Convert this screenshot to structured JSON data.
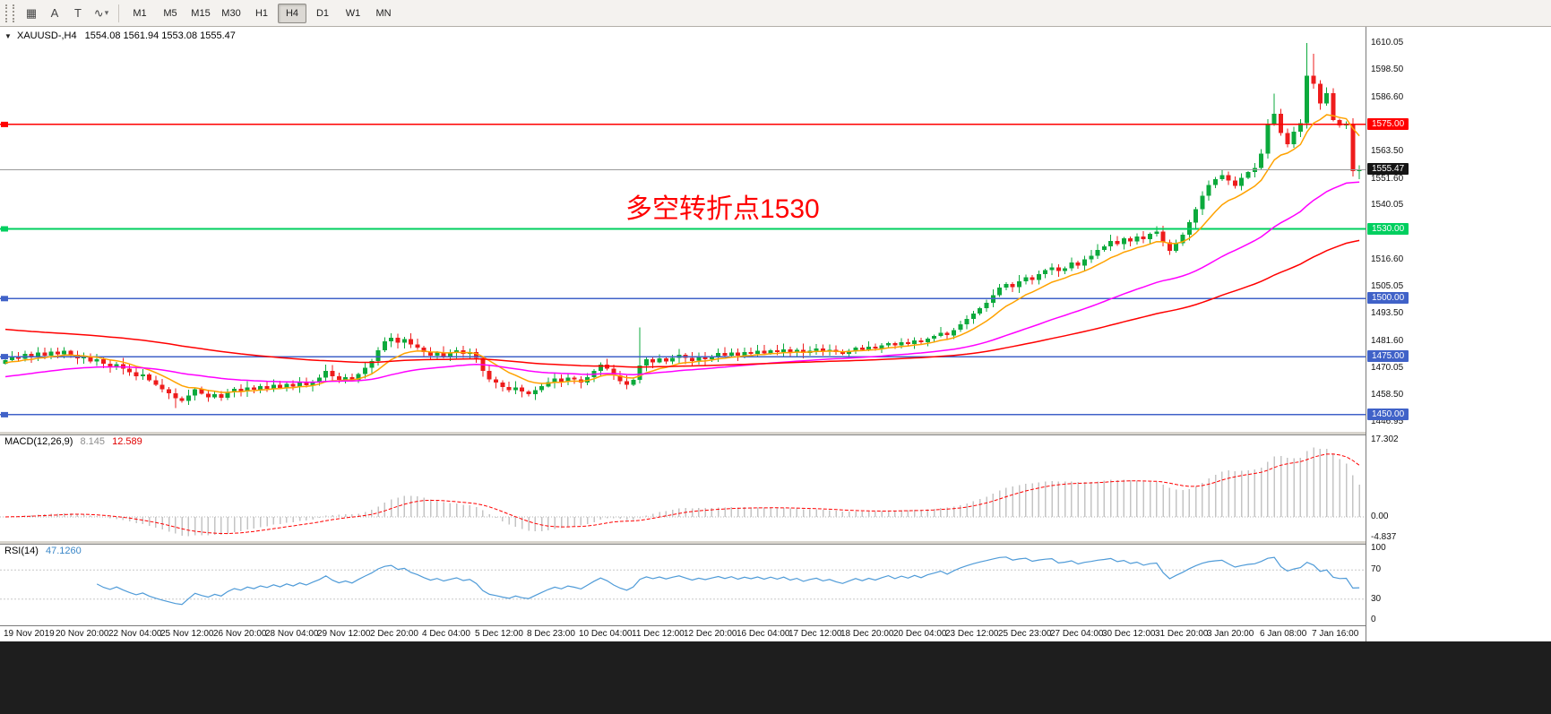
{
  "toolbar": {
    "icons": [
      {
        "name": "grid-icon",
        "glyph": "▦"
      },
      {
        "name": "font-tool-icon",
        "glyph": "A"
      },
      {
        "name": "text-tool-icon",
        "glyph": "T"
      },
      {
        "name": "indicator-tool-icon",
        "glyph": "∿"
      },
      {
        "name": "dropdown-caret-icon",
        "glyph": "▾"
      }
    ],
    "timeframes": [
      "M1",
      "M5",
      "M15",
      "M30",
      "H1",
      "H4",
      "D1",
      "W1",
      "MN"
    ],
    "active_timeframe": "H4"
  },
  "chart": {
    "collapse_glyph": "▼",
    "symbol_timeframe": "XAUUSD-,H4",
    "ohlc_text": "1554.08 1561.94 1553.08 1555.47",
    "annotation": "多空转折点1530",
    "current_price": "1555.47"
  },
  "price_axis": {
    "ticks": [
      "1610.05",
      "1598.50",
      "1586.60",
      "1563.50",
      "1551.60",
      "1540.05",
      "1528.50",
      "1516.60",
      "1505.05",
      "1493.50",
      "1481.60",
      "1470.05",
      "1458.50",
      "1446.95"
    ]
  },
  "time_axis": {
    "labels": [
      "19 Nov 2019",
      "20 Nov 20:00",
      "22 Nov 04:00",
      "25 Nov 12:00",
      "26 Nov 20:00",
      "28 Nov 04:00",
      "29 Nov 12:00",
      "2 Dec 20:00",
      "4 Dec 04:00",
      "5 Dec 12:00",
      "8 Dec 23:00",
      "10 Dec 04:00",
      "11 Dec 12:00",
      "12 Dec 20:00",
      "16 Dec 04:00",
      "17 Dec 12:00",
      "18 Dec 20:00",
      "20 Dec 04:00",
      "23 Dec 12:00",
      "25 Dec 23:00",
      "27 Dec 04:00",
      "30 Dec 12:00",
      "31 Dec 20:00",
      "3 Jan 20:00",
      "6 Jan 08:00",
      "7 Jan 16:00"
    ]
  },
  "macd_panel": {
    "label": "MACD(12,26,9)",
    "value_main": "8.145",
    "value_signal": "12.589",
    "axis": [
      "17.302",
      "0.00",
      "-4.837"
    ]
  },
  "rsi_panel": {
    "label": "RSI(14)",
    "value": "47.1260",
    "axis": [
      "100",
      "70",
      "30",
      "0"
    ]
  },
  "chart_data": {
    "type": "candlestick",
    "symbol": "XAUUSD",
    "timeframe": "H4",
    "title": "XAUUSD-,H4 1554.08 1561.94 1553.08 1555.47",
    "price_range": [
      1443,
      1617
    ],
    "last_candle": {
      "open": 1554.08,
      "high": 1561.94,
      "low": 1553.08,
      "close": 1555.47
    },
    "first_open": 1472.0,
    "closes": [
      1473.5,
      1475.2,
      1474.0,
      1476.1,
      1474.8,
      1476.8,
      1475.5,
      1477.2,
      1476.0,
      1477.5,
      1475.8,
      1474.2,
      1475.0,
      1473.0,
      1473.8,
      1471.9,
      1470.6,
      1471.8,
      1469.9,
      1468.2,
      1466.5,
      1467.3,
      1464.8,
      1462.9,
      1461.0,
      1459.2,
      1457.1,
      1455.9,
      1458.3,
      1460.9,
      1459.0,
      1457.4,
      1458.8,
      1457.2,
      1459.5,
      1461.2,
      1460.0,
      1461.8,
      1460.7,
      1462.3,
      1461.2,
      1462.8,
      1461.5,
      1463.2,
      1462.0,
      1463.8,
      1462.6,
      1464.3,
      1466.0,
      1468.8,
      1466.5,
      1464.9,
      1466.2,
      1465.0,
      1467.5,
      1470.2,
      1473.0,
      1477.8,
      1481.5,
      1483.2,
      1481.0,
      1482.5,
      1480.2,
      1478.9,
      1477.0,
      1475.4,
      1476.8,
      1475.2,
      1476.5,
      1477.8,
      1476.2,
      1477.0,
      1474.5,
      1468.9,
      1465.2,
      1463.8,
      1462.0,
      1460.5,
      1461.8,
      1459.9,
      1458.8,
      1460.5,
      1462.2,
      1464.0,
      1465.5,
      1464.2,
      1466.0,
      1465.1,
      1463.9,
      1466.2,
      1468.9,
      1471.5,
      1469.8,
      1466.9,
      1464.5,
      1462.8,
      1464.9,
      1471.2,
      1473.8,
      1472.5,
      1474.2,
      1472.9,
      1474.5,
      1475.8,
      1474.5,
      1473.2,
      1474.8,
      1473.9,
      1475.2,
      1476.5,
      1475.4,
      1476.8,
      1475.5,
      1477.0,
      1476.2,
      1477.5,
      1476.4,
      1477.8,
      1476.9,
      1478.2,
      1476.8,
      1477.9,
      1476.5,
      1477.6,
      1478.4,
      1477.2,
      1478.0,
      1477.0,
      1476.2,
      1477.5,
      1478.8,
      1477.9,
      1479.2,
      1478.5,
      1479.8,
      1480.9,
      1479.8,
      1481.2,
      1480.5,
      1482.0,
      1481.2,
      1482.8,
      1483.9,
      1485.2,
      1484.2,
      1486.5,
      1488.9,
      1491.2,
      1493.5,
      1495.9,
      1498.2,
      1501.5,
      1504.8,
      1506.2,
      1505.0,
      1507.5,
      1509.2,
      1508.0,
      1510.5,
      1512.2,
      1513.5,
      1511.8,
      1513.0,
      1515.5,
      1514.2,
      1516.8,
      1518.5,
      1520.9,
      1522.5,
      1524.8,
      1523.5,
      1525.9,
      1524.6,
      1526.8,
      1525.5,
      1527.9,
      1528.8,
      1524.2,
      1520.5,
      1523.9,
      1527.5,
      1532.8,
      1538.5,
      1544.2,
      1548.9,
      1551.5,
      1553.2,
      1550.8,
      1548.5,
      1551.9,
      1554.5,
      1556.2,
      1562.5,
      1574.8,
      1579.5,
      1571.2,
      1566.5,
      1571.8,
      1575.5,
      1596.0,
      1592.5,
      1584.0,
      1588.5,
      1576.9,
      1574.5,
      1575.2,
      1554.8,
      1555.47
    ],
    "wick_overrides": {
      "26": {
        "l": 1452.9
      },
      "97": {
        "h": 1487.5
      },
      "194": {
        "h": 1588.3
      },
      "199": {
        "h": 1610.05
      },
      "200": {
        "h": 1605.5
      },
      "207": {
        "l": 1551.5
      }
    },
    "up_color": "#0caa3c",
    "down_color": "#ee1c1c",
    "bid_line": 1555.47,
    "bid_badge_color": "#151515",
    "hlines": [
      {
        "price": 1575.0,
        "label": "1575.00",
        "color": "#ff0000"
      },
      {
        "price": 1530.0,
        "label": "1530.00",
        "color": "#00cf5f"
      },
      {
        "price": 1500.0,
        "label": "1500.00",
        "color": "#4062c8"
      },
      {
        "price": 1475.0,
        "label": "1475.00",
        "color": "#4062c8"
      },
      {
        "price": 1450.0,
        "label": "1450.00",
        "color": "#4062c8"
      }
    ],
    "moving_averages": [
      {
        "period": 10,
        "seed": 1472,
        "color": "#ffa200"
      },
      {
        "period": 45,
        "seed": 1466,
        "color": "#ff00ff"
      },
      {
        "period": 100,
        "seed": 1487,
        "color": "#ff0000"
      }
    ],
    "macd": {
      "fast": 12,
      "slow": 26,
      "signal_period": 9,
      "range": [
        -4.837,
        18.3
      ],
      "histogram_color": "#c4c4c4",
      "signal_color": "#ff0000",
      "shown_values": [
        8.145,
        12.589
      ]
    },
    "rsi": {
      "period": 14,
      "levels": [
        70,
        30
      ],
      "range": [
        0,
        100
      ],
      "color": "#4f9bd8",
      "shown_value": 47.126
    }
  }
}
